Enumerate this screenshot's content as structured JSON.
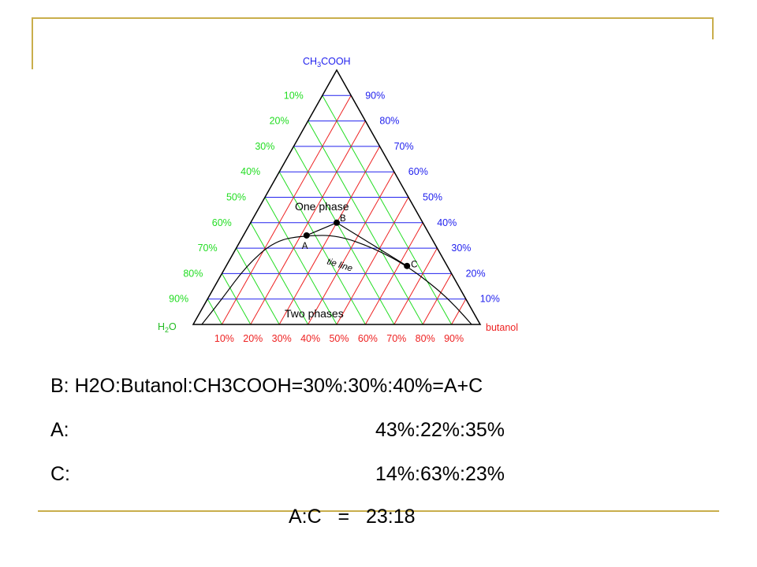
{
  "diagram": {
    "apex_labels": {
      "top": "CH3COOH",
      "left": "H2O",
      "right": "butanol"
    },
    "green_labels": [
      "10%",
      "20%",
      "30%",
      "40%",
      "50%",
      "60%",
      "70%",
      "80%",
      "90%"
    ],
    "blue_labels": [
      "90%",
      "80%",
      "70%",
      "60%",
      "50%",
      "40%",
      "30%",
      "20%",
      "10%"
    ],
    "red_labels": [
      "10%",
      "20%",
      "30%",
      "40%",
      "50%",
      "60%",
      "70%",
      "80%",
      "90%"
    ],
    "region_labels": {
      "one_phase": "One phase",
      "two_phases": "Two phases",
      "tie_line": "tie line"
    },
    "points": [
      {
        "label": "A",
        "water": 43,
        "butanol": 22,
        "acetic_acid": 35
      },
      {
        "label": "B",
        "water": 30,
        "butanol": 30,
        "acetic_acid": 40
      },
      {
        "label": "C",
        "water": 14,
        "butanol": 63,
        "acetic_acid": 23
      }
    ],
    "colors": {
      "green": "#22dd22",
      "blue": "#2222ee",
      "red": "#ee2222",
      "outline": "#000000",
      "frame": "#c9ae4c"
    }
  },
  "text": {
    "line_b": "B: H2O:Butanol:CH3COOH=30%:30%:40%=A+C",
    "line_a_label": "A:",
    "line_a_value": "43%:22%:35%",
    "line_c_label": "C:",
    "line_c_value": "14%:63%:23%",
    "line_ratio": "A:C   =   23:18"
  }
}
